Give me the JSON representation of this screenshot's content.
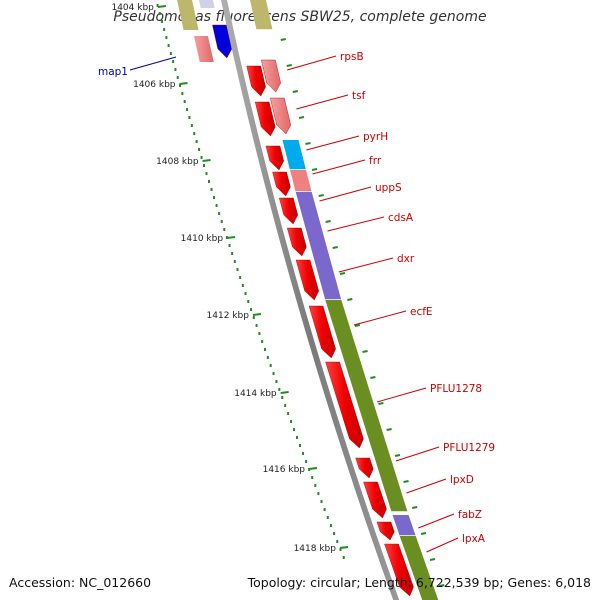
{
  "title": "Pseudomonas fluorescens SBW25, complete genome",
  "accession": "Accession: NC_012660",
  "summary": "Topology: circular; Length: 6,722,539 bp; Genes: 6,018",
  "colors": {
    "backbone": "#8a8a8a",
    "gene_arrow": "#ee0000",
    "gene_arrow_light": "#f08080",
    "category_cyan": "#00aaee",
    "category_purple": "#7b68cc",
    "category_olive": "#6b8e23",
    "category_blue": "#0000dd",
    "category_khaki": "#bdb76b",
    "gene_label": "#cc0000",
    "map1_label": "#0000aa",
    "tick": "#228b22"
  },
  "kbp_ticks": [
    "1404 kbp",
    "1406 kbp",
    "1408 kbp",
    "1410 kbp",
    "1412 kbp",
    "1414 kbp",
    "1416 kbp",
    "1418 kbp"
  ],
  "gene_labels": [
    {
      "name": "rpsB"
    },
    {
      "name": "tsf"
    },
    {
      "name": "pyrH"
    },
    {
      "name": "frr"
    },
    {
      "name": "uppS"
    },
    {
      "name": "cdsA"
    },
    {
      "name": "dxr"
    },
    {
      "name": "ecfE"
    },
    {
      "name": "PFLU1278"
    },
    {
      "name": "PFLU1279"
    },
    {
      "name": "lpxD"
    },
    {
      "name": "fabZ"
    },
    {
      "name": "lpxA"
    }
  ],
  "other_labels": [
    {
      "name": "map1"
    }
  ]
}
